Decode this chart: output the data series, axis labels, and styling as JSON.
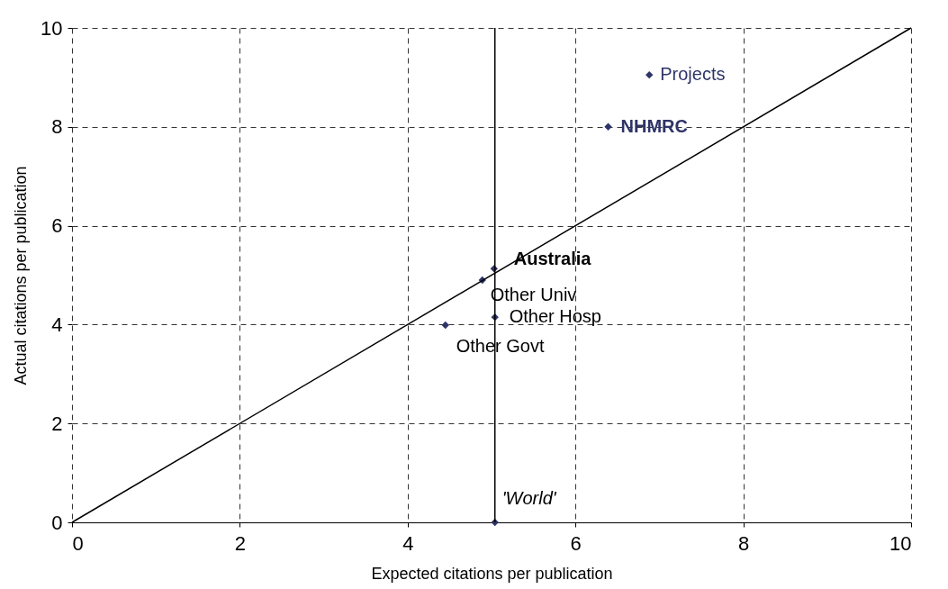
{
  "chart_data": {
    "type": "scatter",
    "xlabel": "Expected citations per publication",
    "ylabel": "Actual citations per publication",
    "xlim": [
      0,
      10
    ],
    "ylim": [
      0,
      10
    ],
    "xticks": [
      0,
      2,
      4,
      6,
      8,
      10
    ],
    "yticks": [
      0,
      2,
      4,
      6,
      8,
      10
    ],
    "grid": true,
    "series": [
      {
        "type": "scatter",
        "marker": "diamond",
        "color": "#2e3467",
        "x": [
          6.88,
          6.39,
          5.03,
          4.89,
          5.04,
          4.45,
          5.04
        ],
        "values": [
          9.05,
          8.0,
          5.13,
          4.9,
          4.15,
          3.99,
          0
        ]
      },
      {
        "type": "line",
        "marker": "none",
        "line_style": "solid",
        "color": "#000000",
        "x": [
          0,
          10
        ],
        "values": [
          0,
          10
        ]
      }
    ],
    "ref_lines": [
      {
        "axis": "x",
        "value": 5.04,
        "color": "#000000",
        "line_style": "solid"
      }
    ],
    "annotations": [
      {
        "text": "Projects",
        "x": 6.88,
        "y": 9.05
      },
      {
        "text": "NHMRC",
        "x": 6.39,
        "y": 8.0
      },
      {
        "text": "Australia",
        "x": 5.03,
        "y": 5.13
      },
      {
        "text": "Other Univ",
        "x": 4.89,
        "y": 4.9
      },
      {
        "text": "Other Hosp",
        "x": 5.04,
        "y": 4.15
      },
      {
        "text": "Other Govt",
        "x": 4.45,
        "y": 3.99
      },
      {
        "text": "'World'",
        "x": 5.04,
        "y": 0
      }
    ]
  }
}
